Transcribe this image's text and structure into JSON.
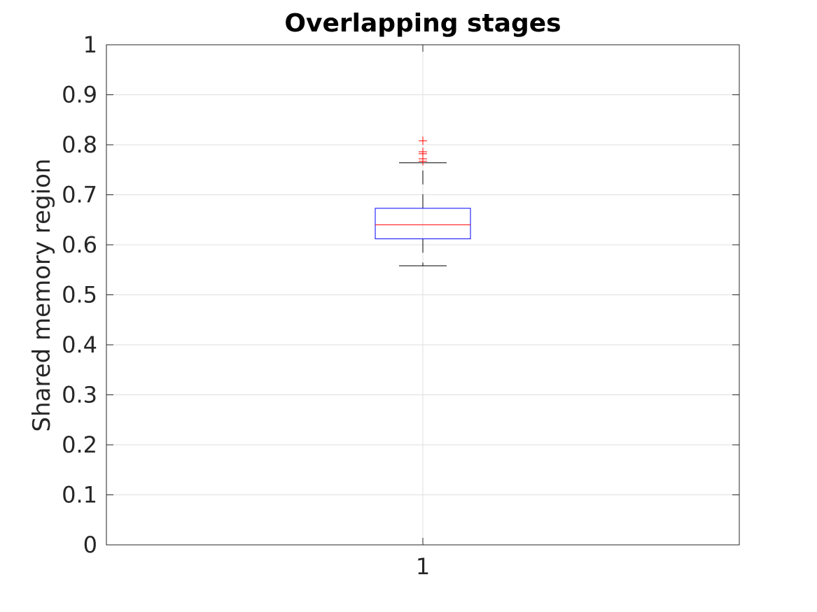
{
  "chart_data": {
    "type": "box",
    "title": "Overlapping stages",
    "xlabel": "",
    "ylabel": "Shared memory region",
    "categories": [
      "1"
    ],
    "ylim": [
      0,
      1
    ],
    "yticks": [
      "0",
      "0.1",
      "0.2",
      "0.3",
      "0.4",
      "0.5",
      "0.6",
      "0.7",
      "0.8",
      "0.9",
      "1"
    ],
    "grid": true,
    "boxes": [
      {
        "category": "1",
        "whisker_low": 0.558,
        "q1": 0.612,
        "median": 0.64,
        "q3": 0.673,
        "whisker_high": 0.764,
        "outliers": [
          0.767,
          0.772,
          0.782,
          0.786,
          0.808
        ]
      }
    ],
    "colors": {
      "box": "#0000ff",
      "median": "#ff0000",
      "outlier": "#ff0000",
      "whisker": "#000000",
      "grid": "#dfdfdf",
      "axis": "#262626"
    }
  }
}
